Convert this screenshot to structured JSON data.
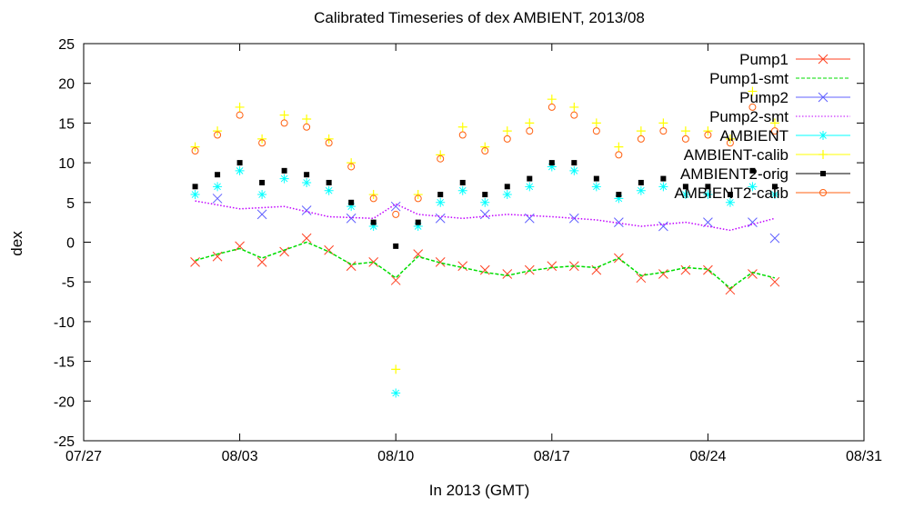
{
  "chart_data": {
    "type": "scatter",
    "title": "Calibrated Timeseries of dex AMBIENT, 2013/08",
    "xlabel": "In 2013 (GMT)",
    "ylabel": "dex",
    "xlim": [
      "2013-07-27",
      "2013-08-31"
    ],
    "ylim": [
      -25,
      25
    ],
    "xticks": [
      "07/27",
      "08/03",
      "08/10",
      "08/17",
      "08/24",
      "08/31"
    ],
    "yticks": [
      -25,
      -20,
      -15,
      -10,
      -5,
      0,
      5,
      10,
      15,
      20,
      25
    ],
    "grid": false,
    "legend_position": "top-right",
    "series": [
      {
        "name": "Pump1",
        "color": "#ff4020",
        "marker": "x",
        "x": [
          "2013-08-01",
          "2013-08-02",
          "2013-08-03",
          "2013-08-04",
          "2013-08-05",
          "2013-08-06",
          "2013-08-07",
          "2013-08-08",
          "2013-08-09",
          "2013-08-10",
          "2013-08-11",
          "2013-08-12",
          "2013-08-13",
          "2013-08-14",
          "2013-08-15",
          "2013-08-16",
          "2013-08-17",
          "2013-08-18",
          "2013-08-19",
          "2013-08-20",
          "2013-08-21",
          "2013-08-22",
          "2013-08-23",
          "2013-08-24",
          "2013-08-25",
          "2013-08-26",
          "2013-08-27"
        ],
        "y": [
          -2.5,
          -1.8,
          -0.5,
          -2.5,
          -1.2,
          0.5,
          -1.0,
          -3.0,
          -2.5,
          -4.8,
          -1.5,
          -2.5,
          -3.0,
          -3.5,
          -4.0,
          -3.5,
          -3.0,
          -3.0,
          -3.5,
          -2.0,
          -4.5,
          -4.0,
          -3.5,
          -3.5,
          -6.0,
          -4.0,
          -5.0
        ]
      },
      {
        "name": "Pump1-smt",
        "color": "#00dd00",
        "style": "dashed",
        "x": [
          "2013-08-01",
          "2013-08-02",
          "2013-08-03",
          "2013-08-04",
          "2013-08-05",
          "2013-08-06",
          "2013-08-07",
          "2013-08-08",
          "2013-08-09",
          "2013-08-10",
          "2013-08-11",
          "2013-08-12",
          "2013-08-13",
          "2013-08-14",
          "2013-08-15",
          "2013-08-16",
          "2013-08-17",
          "2013-08-18",
          "2013-08-19",
          "2013-08-20",
          "2013-08-21",
          "2013-08-22",
          "2013-08-23",
          "2013-08-24",
          "2013-08-25",
          "2013-08-26",
          "2013-08-27"
        ],
        "y": [
          -2.3,
          -1.5,
          -0.8,
          -2.0,
          -1.0,
          0.0,
          -1.2,
          -2.8,
          -2.5,
          -4.5,
          -1.8,
          -2.6,
          -3.2,
          -3.8,
          -4.2,
          -3.6,
          -3.2,
          -3.0,
          -3.2,
          -2.0,
          -4.2,
          -3.8,
          -3.2,
          -3.4,
          -5.8,
          -3.8,
          -4.5
        ]
      },
      {
        "name": "Pump2",
        "color": "#6060ff",
        "marker": "x",
        "x": [
          "2013-08-02",
          "2013-08-04",
          "2013-08-06",
          "2013-08-08",
          "2013-08-10",
          "2013-08-12",
          "2013-08-14",
          "2013-08-16",
          "2013-08-18",
          "2013-08-20",
          "2013-08-22",
          "2013-08-24",
          "2013-08-26",
          "2013-08-27"
        ],
        "y": [
          5.5,
          3.5,
          4.0,
          3.0,
          4.5,
          3.0,
          3.5,
          3.0,
          3.0,
          2.5,
          2.0,
          2.5,
          2.5,
          0.5
        ]
      },
      {
        "name": "Pump2-smt",
        "color": "#c000ff",
        "style": "dotted",
        "x": [
          "2013-08-01",
          "2013-08-03",
          "2013-08-05",
          "2013-08-07",
          "2013-08-09",
          "2013-08-10",
          "2013-08-11",
          "2013-08-13",
          "2013-08-15",
          "2013-08-17",
          "2013-08-19",
          "2013-08-21",
          "2013-08-23",
          "2013-08-25",
          "2013-08-27"
        ],
        "y": [
          5.2,
          4.2,
          4.5,
          3.2,
          3.0,
          4.8,
          3.5,
          3.0,
          3.5,
          3.2,
          2.8,
          2.0,
          2.5,
          1.5,
          3.0
        ]
      },
      {
        "name": "AMBIENT",
        "color": "#00ffff",
        "marker": "*",
        "x": [
          "2013-08-01",
          "2013-08-02",
          "2013-08-03",
          "2013-08-04",
          "2013-08-05",
          "2013-08-06",
          "2013-08-07",
          "2013-08-08",
          "2013-08-09",
          "2013-08-10",
          "2013-08-11",
          "2013-08-12",
          "2013-08-13",
          "2013-08-14",
          "2013-08-15",
          "2013-08-16",
          "2013-08-17",
          "2013-08-18",
          "2013-08-19",
          "2013-08-20",
          "2013-08-21",
          "2013-08-22",
          "2013-08-23",
          "2013-08-24",
          "2013-08-25",
          "2013-08-26",
          "2013-08-27"
        ],
        "y": [
          6.0,
          7.0,
          9.0,
          6.0,
          8.0,
          7.5,
          6.5,
          4.5,
          2.0,
          -19.0,
          2.0,
          5.0,
          6.5,
          5.0,
          6.0,
          7.0,
          9.5,
          9.0,
          7.0,
          5.5,
          6.5,
          7.0,
          6.0,
          6.0,
          5.0,
          7.0,
          6.0
        ]
      },
      {
        "name": "AMBIENT-calib",
        "color": "#ffff00",
        "marker": "+",
        "x": [
          "2013-08-01",
          "2013-08-02",
          "2013-08-03",
          "2013-08-04",
          "2013-08-05",
          "2013-08-06",
          "2013-08-07",
          "2013-08-08",
          "2013-08-09",
          "2013-08-10",
          "2013-08-11",
          "2013-08-12",
          "2013-08-13",
          "2013-08-14",
          "2013-08-15",
          "2013-08-16",
          "2013-08-17",
          "2013-08-18",
          "2013-08-19",
          "2013-08-20",
          "2013-08-21",
          "2013-08-22",
          "2013-08-23",
          "2013-08-24",
          "2013-08-25",
          "2013-08-26",
          "2013-08-27"
        ],
        "y": [
          12.0,
          14.0,
          17.0,
          13.0,
          16.0,
          15.5,
          13.0,
          10.0,
          6.0,
          -16.0,
          6.0,
          11.0,
          14.5,
          12.0,
          14.0,
          15.0,
          18.0,
          17.0,
          15.0,
          12.0,
          14.0,
          15.0,
          14.0,
          14.0,
          13.0,
          19.0,
          15.0
        ]
      },
      {
        "name": "AMBIENT2-orig",
        "color": "#000000",
        "marker": "square",
        "x": [
          "2013-08-01",
          "2013-08-02",
          "2013-08-03",
          "2013-08-04",
          "2013-08-05",
          "2013-08-06",
          "2013-08-07",
          "2013-08-08",
          "2013-08-09",
          "2013-08-10",
          "2013-08-11",
          "2013-08-12",
          "2013-08-13",
          "2013-08-14",
          "2013-08-15",
          "2013-08-16",
          "2013-08-17",
          "2013-08-18",
          "2013-08-19",
          "2013-08-20",
          "2013-08-21",
          "2013-08-22",
          "2013-08-23",
          "2013-08-24",
          "2013-08-25",
          "2013-08-26",
          "2013-08-27"
        ],
        "y": [
          7.0,
          8.5,
          10.0,
          7.5,
          9.0,
          8.5,
          7.5,
          5.0,
          2.5,
          -0.5,
          2.5,
          6.0,
          7.5,
          6.0,
          7.0,
          8.0,
          10.0,
          10.0,
          8.0,
          6.0,
          7.5,
          8.0,
          7.0,
          7.0,
          6.0,
          9.0,
          7.0
        ]
      },
      {
        "name": "AMBIENT2-calib",
        "color": "#ff6010",
        "marker": "o",
        "x": [
          "2013-08-01",
          "2013-08-02",
          "2013-08-03",
          "2013-08-04",
          "2013-08-05",
          "2013-08-06",
          "2013-08-07",
          "2013-08-08",
          "2013-08-09",
          "2013-08-10",
          "2013-08-11",
          "2013-08-12",
          "2013-08-13",
          "2013-08-14",
          "2013-08-15",
          "2013-08-16",
          "2013-08-17",
          "2013-08-18",
          "2013-08-19",
          "2013-08-20",
          "2013-08-21",
          "2013-08-22",
          "2013-08-23",
          "2013-08-24",
          "2013-08-25",
          "2013-08-26",
          "2013-08-27"
        ],
        "y": [
          11.5,
          13.5,
          16.0,
          12.5,
          15.0,
          14.5,
          12.5,
          9.5,
          5.5,
          3.5,
          5.5,
          10.5,
          13.5,
          11.5,
          13.0,
          14.0,
          17.0,
          16.0,
          14.0,
          11.0,
          13.0,
          14.0,
          13.0,
          13.5,
          12.5,
          17.0,
          14.0
        ]
      }
    ]
  }
}
